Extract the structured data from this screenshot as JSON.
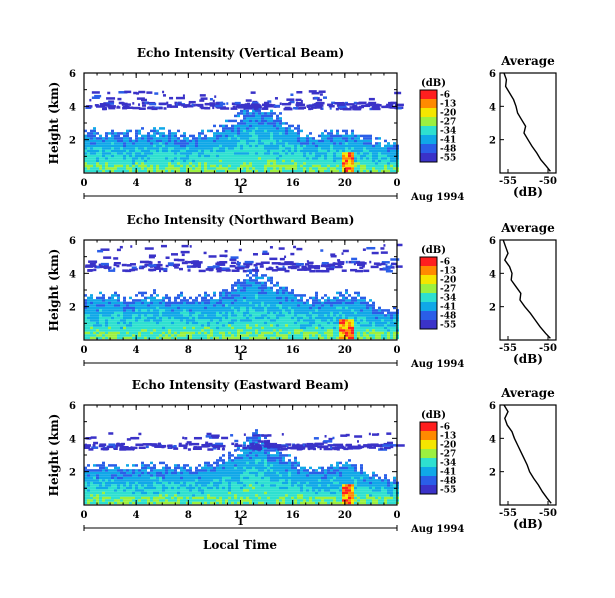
{
  "chart_data": {
    "type": "heatmap",
    "x_label": "Local Time",
    "y_label": "Height (km)",
    "date_label": "Aug 1994",
    "day_label": "1",
    "x_range": [
      0,
      24
    ],
    "y_range": [
      0,
      6
    ],
    "x_ticks": [
      "0",
      "4",
      "8",
      "12",
      "16",
      "20",
      "0"
    ],
    "y_ticks": [
      "6",
      "4",
      "2"
    ],
    "colorbar": {
      "unit": "(dB)",
      "labels": [
        "-6",
        "-13",
        "-20",
        "-27",
        "-34",
        "-41",
        "-48",
        "-55"
      ],
      "colors": [
        "#ff1f1f",
        "#ff8a00",
        "#f5e600",
        "#9cf040",
        "#2ee0d0",
        "#10a8e8",
        "#2a5ee8",
        "#3a32c8"
      ]
    },
    "panels": [
      {
        "title": "Echo Intensity (Vertical Beam)",
        "main_echo_top_km": [
          2.6,
          2.5,
          2.4,
          2.3,
          2.5,
          2.6,
          2.6,
          2.5,
          2.3,
          2.4,
          2.8,
          3.1,
          3.6,
          4.3,
          3.9,
          3.4,
          2.9,
          2.4,
          2.3,
          2.5,
          2.8,
          2.4,
          2.0,
          1.8,
          1.6
        ],
        "upper_layer_km": [
          3.9,
          5.0
        ],
        "peak_time_h": 20.2,
        "profile": {
          "title": "Average",
          "x_label": "(dB)",
          "x_ticks": [
            "-55",
            "-50"
          ],
          "y_ticks": [
            "6",
            "4",
            "2"
          ],
          "x_range": [
            -56,
            -49
          ],
          "height_km": [
            6.0,
            5.6,
            5.2,
            4.8,
            4.4,
            4.0,
            3.6,
            3.2,
            2.8,
            2.4,
            2.0,
            1.6,
            1.2,
            0.8,
            0.4,
            0.1
          ],
          "mean_db": [
            -55.5,
            -55.2,
            -55.3,
            -54.8,
            -54.3,
            -54.0,
            -53.8,
            -53.3,
            -52.8,
            -53.0,
            -52.5,
            -52.0,
            -51.4,
            -50.9,
            -50.2,
            -49.7
          ]
        }
      },
      {
        "title": "Echo Intensity (Northward Beam)",
        "main_echo_top_km": [
          2.8,
          2.7,
          3.0,
          2.6,
          2.7,
          2.8,
          2.7,
          2.6,
          2.6,
          2.7,
          2.9,
          3.2,
          3.7,
          4.3,
          3.8,
          3.3,
          2.8,
          2.6,
          2.6,
          2.7,
          3.0,
          2.6,
          2.2,
          1.9,
          1.7
        ],
        "upper_layer_km": [
          4.2,
          5.8
        ],
        "peak_time_h": 20.0,
        "profile": {
          "title": "Average",
          "x_label": "(dB)",
          "x_ticks": [
            "-55",
            "-50"
          ],
          "y_ticks": [
            "6",
            "4",
            "2"
          ],
          "x_range": [
            -56,
            -49
          ],
          "height_km": [
            6.0,
            5.6,
            5.2,
            4.8,
            4.4,
            4.0,
            3.6,
            3.2,
            2.8,
            2.4,
            2.0,
            1.6,
            1.2,
            0.8,
            0.4,
            0.1
          ],
          "mean_db": [
            -55.6,
            -55.3,
            -55.0,
            -55.4,
            -54.8,
            -54.5,
            -54.6,
            -54.0,
            -53.4,
            -53.5,
            -52.9,
            -52.2,
            -51.6,
            -51.0,
            -50.3,
            -49.7
          ]
        }
      },
      {
        "title": "Echo Intensity (Eastward Beam)",
        "main_echo_top_km": [
          2.4,
          2.3,
          2.4,
          2.2,
          2.4,
          2.5,
          2.6,
          2.4,
          2.2,
          2.4,
          2.7,
          3.0,
          3.6,
          4.5,
          3.8,
          3.2,
          2.7,
          2.3,
          2.2,
          2.4,
          2.7,
          2.3,
          1.9,
          1.7,
          1.5
        ],
        "upper_layer_km": [
          3.4,
          4.4
        ],
        "peak_time_h": 20.1,
        "profile": {
          "title": "Average",
          "x_label": "(dB)",
          "x_ticks": [
            "-55",
            "-50"
          ],
          "y_ticks": [
            "6",
            "4",
            "2"
          ],
          "x_range": [
            -56,
            -49
          ],
          "height_km": [
            6.0,
            5.6,
            5.2,
            4.8,
            4.4,
            4.0,
            3.6,
            3.2,
            2.8,
            2.4,
            2.0,
            1.6,
            1.2,
            0.8,
            0.4,
            0.1
          ],
          "mean_db": [
            -55.5,
            -55.0,
            -55.4,
            -55.1,
            -54.5,
            -54.2,
            -53.8,
            -53.4,
            -53.0,
            -52.6,
            -52.3,
            -51.8,
            -51.2,
            -50.7,
            -50.1,
            -49.6
          ]
        }
      }
    ]
  }
}
